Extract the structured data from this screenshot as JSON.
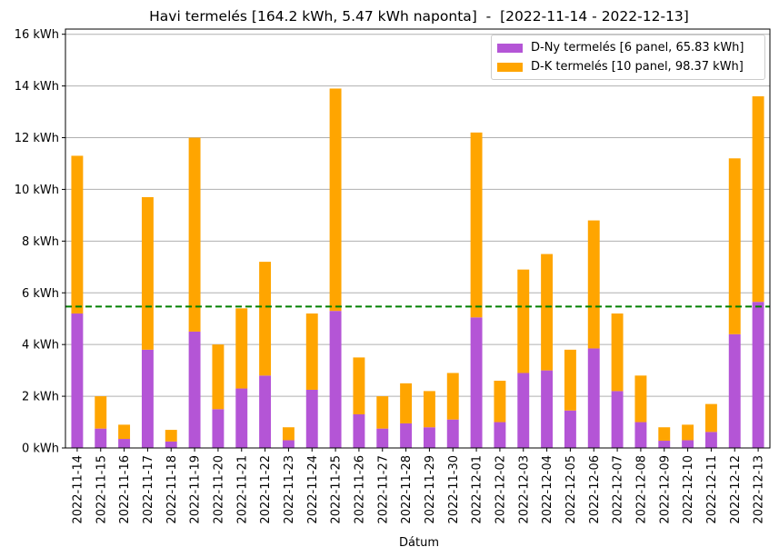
{
  "chart_data": {
    "type": "bar",
    "stacked": true,
    "title": "Havi termelés [164.2 kWh, 5.47 kWh naponta]  -  [2022-11-14 - 2022-12-13]",
    "xlabel": "Dátum",
    "ylabel": "",
    "ylim": [
      0,
      16.2
    ],
    "y_ticks": [
      "0 kWh",
      "2 kWh",
      "4 kWh",
      "6 kWh",
      "8 kWh",
      "10 kWh",
      "12 kWh",
      "14 kWh",
      "16 kWh"
    ],
    "y_tick_values": [
      0,
      2,
      4,
      6,
      8,
      10,
      12,
      14,
      16
    ],
    "grid": "horizontal",
    "legend_position": "top-right",
    "average_line": {
      "value": 5.47,
      "color": "#008000",
      "style": "dashed"
    },
    "categories": [
      "2022-11-14",
      "2022-11-15",
      "2022-11-16",
      "2022-11-17",
      "2022-11-18",
      "2022-11-19",
      "2022-11-20",
      "2022-11-21",
      "2022-11-22",
      "2022-11-23",
      "2022-11-24",
      "2022-11-25",
      "2022-11-26",
      "2022-11-27",
      "2022-11-28",
      "2022-11-29",
      "2022-11-30",
      "2022-12-01",
      "2022-12-02",
      "2022-12-03",
      "2022-12-04",
      "2022-12-05",
      "2022-12-06",
      "2022-12-07",
      "2022-12-08",
      "2022-12-09",
      "2022-12-10",
      "2022-12-11",
      "2022-12-12",
      "2022-12-13"
    ],
    "series": [
      {
        "name": "D-Ny termelés [6 panel, 65.83 kWh]",
        "color": "#b455d6",
        "values": [
          5.2,
          0.75,
          0.35,
          3.8,
          0.25,
          4.5,
          1.5,
          2.3,
          2.8,
          0.3,
          2.25,
          5.3,
          1.3,
          0.75,
          0.95,
          0.8,
          1.1,
          5.05,
          1.0,
          2.9,
          3.0,
          1.45,
          3.85,
          2.2,
          1.0,
          0.28,
          0.3,
          0.62,
          4.4,
          5.65
        ]
      },
      {
        "name": "D-K termelés [10 panel, 98.37 kWh]",
        "color": "#ffa500",
        "values": [
          6.1,
          1.25,
          0.55,
          5.9,
          0.45,
          7.5,
          2.5,
          3.1,
          4.4,
          0.5,
          2.95,
          8.6,
          2.2,
          1.25,
          1.55,
          1.4,
          1.8,
          7.15,
          1.6,
          4.0,
          4.5,
          2.35,
          4.95,
          3.0,
          1.8,
          0.52,
          0.6,
          1.08,
          6.8,
          7.95
        ]
      }
    ]
  }
}
